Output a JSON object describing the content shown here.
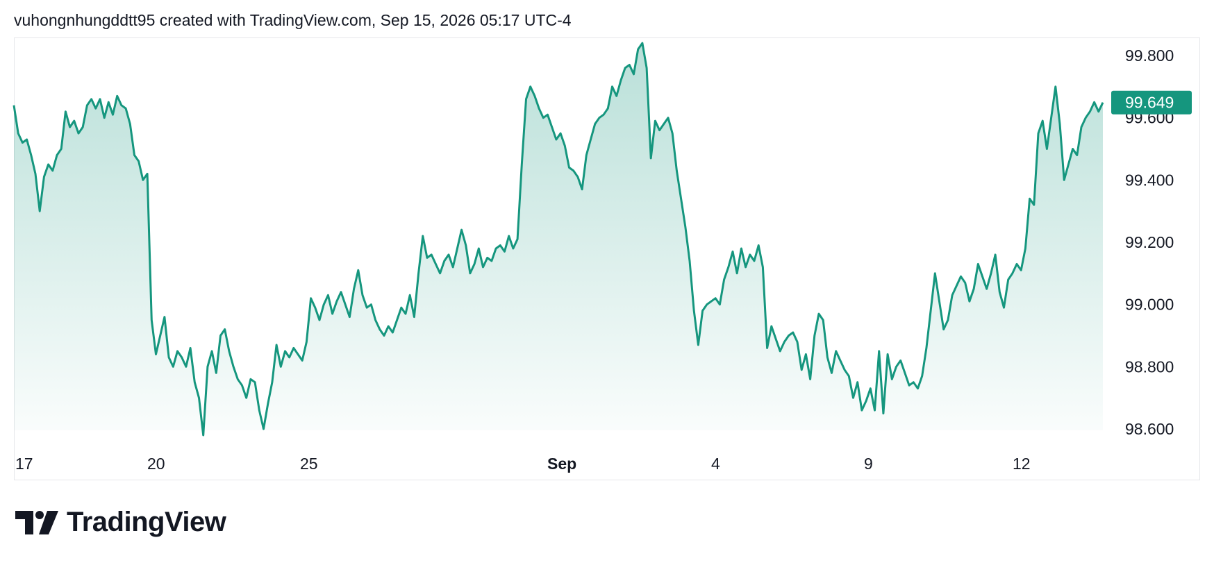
{
  "header": {
    "text": "vuhongnhungddtt95 created with TradingView.com, Sep 15, 2026 05:17 UTC-4"
  },
  "brand": {
    "name": "TradingView",
    "logo_icon": "tradingview-logo-icon"
  },
  "colors": {
    "line": "#15967e",
    "fill_top": "#15967e",
    "price_tag_bg": "#15967e",
    "text": "#131722"
  },
  "chart_data": {
    "type": "area",
    "y_ticks": [
      "99.800",
      "99.600",
      "99.400",
      "99.200",
      "99.000",
      "98.800",
      "98.600"
    ],
    "y_tick_values": [
      99.8,
      99.6,
      99.4,
      99.2,
      99.0,
      98.8,
      98.6
    ],
    "ylim": [
      98.55,
      99.85
    ],
    "x_ticks": [
      {
        "label": "17",
        "bold": false
      },
      {
        "label": "20",
        "bold": false
      },
      {
        "label": "25",
        "bold": false
      },
      {
        "label": "Sep",
        "bold": true
      },
      {
        "label": "4",
        "bold": false
      },
      {
        "label": "9",
        "bold": false
      },
      {
        "label": "12",
        "bold": false
      }
    ],
    "last_price": "99.649",
    "last_value": 99.649,
    "grid": false,
    "values": [
      99.64,
      99.55,
      99.52,
      99.53,
      99.48,
      99.42,
      99.3,
      99.41,
      99.45,
      99.43,
      99.48,
      99.5,
      99.62,
      99.57,
      99.59,
      99.55,
      99.57,
      99.64,
      99.66,
      99.63,
      99.66,
      99.6,
      99.65,
      99.61,
      99.67,
      99.64,
      99.63,
      99.58,
      99.48,
      99.46,
      99.4,
      99.42,
      98.95,
      98.84,
      98.9,
      98.96,
      98.83,
      98.8,
      98.85,
      98.83,
      98.8,
      98.86,
      98.75,
      98.7,
      98.58,
      98.8,
      98.85,
      98.78,
      98.9,
      98.92,
      98.85,
      98.8,
      98.76,
      98.74,
      98.7,
      98.76,
      98.75,
      98.66,
      98.6,
      98.68,
      98.75,
      98.87,
      98.8,
      98.85,
      98.83,
      98.86,
      98.84,
      98.82,
      98.88,
      99.02,
      98.99,
      98.95,
      99.0,
      99.03,
      98.97,
      99.01,
      99.04,
      99.0,
      98.96,
      99.05,
      99.11,
      99.03,
      98.99,
      99.0,
      98.95,
      98.92,
      98.9,
      98.93,
      98.91,
      98.95,
      98.99,
      98.97,
      99.03,
      98.96,
      99.1,
      99.22,
      99.15,
      99.16,
      99.13,
      99.1,
      99.14,
      99.16,
      99.12,
      99.18,
      99.24,
      99.19,
      99.1,
      99.13,
      99.18,
      99.12,
      99.15,
      99.14,
      99.18,
      99.19,
      99.17,
      99.22,
      99.18,
      99.21,
      99.45,
      99.66,
      99.7,
      99.67,
      99.63,
      99.6,
      99.61,
      99.57,
      99.53,
      99.55,
      99.51,
      99.44,
      99.43,
      99.41,
      99.37,
      99.48,
      99.53,
      99.58,
      99.6,
      99.61,
      99.63,
      99.7,
      99.67,
      99.72,
      99.76,
      99.77,
      99.74,
      99.82,
      99.84,
      99.76,
      99.47,
      99.59,
      99.56,
      99.58,
      99.6,
      99.55,
      99.43,
      99.34,
      99.25,
      99.14,
      98.98,
      98.87,
      98.98,
      99.0,
      99.01,
      99.02,
      99.0,
      99.08,
      99.12,
      99.17,
      99.1,
      99.18,
      99.12,
      99.16,
      99.14,
      99.19,
      99.12,
      98.86,
      98.93,
      98.89,
      98.85,
      98.88,
      98.9,
      98.91,
      98.88,
      98.79,
      98.84,
      98.76,
      98.9,
      98.97,
      98.95,
      98.83,
      98.78,
      98.85,
      98.82,
      98.79,
      98.77,
      98.7,
      98.75,
      98.66,
      98.69,
      98.73,
      98.66,
      98.85,
      98.65,
      98.84,
      98.76,
      98.8,
      98.82,
      98.78,
      98.74,
      98.75,
      98.73,
      98.77,
      98.86,
      98.98,
      99.1,
      99.01,
      98.92,
      98.95,
      99.03,
      99.06,
      99.09,
      99.07,
      99.01,
      99.05,
      99.13,
      99.09,
      99.05,
      99.1,
      99.16,
      99.04,
      98.99,
      99.08,
      99.1,
      99.13,
      99.11,
      99.18,
      99.34,
      99.32,
      99.55,
      99.59,
      99.5,
      99.6,
      99.7,
      99.58,
      99.4,
      99.45,
      99.5,
      99.48,
      99.57,
      99.6,
      99.62,
      99.65,
      99.62,
      99.649
    ]
  }
}
